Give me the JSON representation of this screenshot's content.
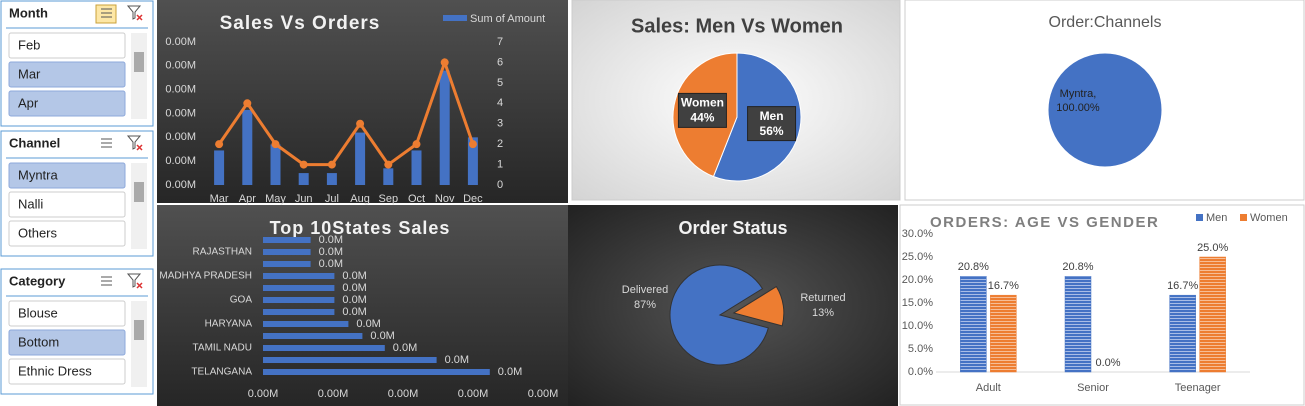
{
  "slicers": [
    {
      "title": "Month",
      "items": [
        {
          "label": "Feb",
          "selected": false
        },
        {
          "label": "Mar",
          "selected": true
        },
        {
          "label": "Apr",
          "selected": true
        }
      ]
    },
    {
      "title": "Channel",
      "items": [
        {
          "label": "Myntra",
          "selected": true
        },
        {
          "label": "Nalli",
          "selected": false
        },
        {
          "label": "Others",
          "selected": false
        }
      ]
    },
    {
      "title": "Category",
      "items": [
        {
          "label": "Blouse",
          "selected": false
        },
        {
          "label": "Bottom",
          "selected": true
        },
        {
          "label": "Ethnic Dress",
          "selected": false
        }
      ]
    }
  ],
  "chart_data": [
    {
      "type": "combo",
      "title": "Sales Vs Orders",
      "categories": [
        "Mar",
        "Apr",
        "May",
        "Jun",
        "Jul",
        "Aug",
        "Sep",
        "Oct",
        "Nov",
        "Dec"
      ],
      "series": [
        {
          "name": "Sum of Amount",
          "kind": "bar",
          "color": "#4472c4",
          "values": [
            0.00029,
            0.00063,
            0.00034,
            0.0001,
            0.0001,
            0.00044,
            0.00014,
            0.00029,
            0.00096,
            0.0004
          ]
        },
        {
          "kind": "line",
          "axis": "y2",
          "color": "#ed7d31",
          "values": [
            2,
            4,
            2,
            1,
            1,
            3,
            1,
            2,
            6,
            2
          ]
        }
      ],
      "ylim": [
        0,
        0.0012
      ],
      "yticks": [
        {
          "value": 0,
          "label": "0.00M"
        },
        {
          "value": 0.0002,
          "label": "0.00M"
        },
        {
          "value": 0.0004,
          "label": "0.00M"
        },
        {
          "value": 0.0006,
          "label": "0.00M"
        },
        {
          "value": 0.0008,
          "label": "0.00M"
        },
        {
          "value": 0.001,
          "label": "0.00M"
        },
        {
          "value": 0.0012,
          "label": "0.00M"
        }
      ],
      "y2lim": [
        0,
        7
      ],
      "y2ticks": [
        0,
        1,
        2,
        3,
        4,
        5,
        6,
        7
      ],
      "legend": "top-right"
    },
    {
      "type": "pie",
      "title": "Sales: Men Vs Women",
      "categories": [
        "Men",
        "Women"
      ],
      "values": [
        56,
        44
      ],
      "value_labels": [
        "56%",
        "44%"
      ],
      "colors": [
        "#4472c4",
        "#ed7d31"
      ],
      "start_angle": 0
    },
    {
      "type": "pie",
      "title": "Order:Channels",
      "categories": [
        "Myntra,"
      ],
      "values": [
        100
      ],
      "value_labels": [
        "100.00%"
      ],
      "colors": [
        "#4472c4"
      ],
      "start_angle": 0
    },
    {
      "type": "bar",
      "orientation": "horizontal",
      "title": "Top 10States Sales",
      "categories": [
        null,
        "RAJASTHAN",
        null,
        "MADHYA PRADESH",
        null,
        "GOA",
        null,
        "HARYANA",
        null,
        "TAMIL NADU",
        null,
        "TELANGANA"
      ],
      "values": [
        0.00034,
        0.00034,
        0.00034,
        0.00051,
        0.00051,
        0.00051,
        0.00051,
        0.00061,
        0.00071,
        0.00087,
        0.00124,
        0.00162
      ],
      "value_labels": [
        "0.0M",
        "0.0M",
        "0.0M",
        "0.0M",
        "0.0M",
        "0.0M",
        "0.0M",
        "0.0M",
        "0.0M",
        "0.0M",
        "0.0M",
        "0.0M"
      ],
      "color": "#4472c4",
      "xlim": [
        0,
        0.002
      ],
      "xticks": [
        {
          "value": 0,
          "label": "0.00M"
        },
        {
          "value": 0.0005,
          "label": "0.00M"
        },
        {
          "value": 0.001,
          "label": "0.00M"
        },
        {
          "value": 0.0015,
          "label": "0.00M"
        },
        {
          "value": 0.002,
          "label": "0.00M"
        }
      ]
    },
    {
      "type": "pie",
      "title": "Order Status",
      "categories": [
        "Delivered",
        "Returned"
      ],
      "values": [
        87,
        13
      ],
      "value_labels": [
        "87%",
        "13%"
      ],
      "colors": [
        "#4472c4",
        "#ed7d31"
      ],
      "start_angle": 105,
      "explode": [
        0,
        14
      ]
    },
    {
      "type": "bar",
      "orientation": "vertical",
      "title": "ORDERS: AGE VS GENDER",
      "categories": [
        "Adult",
        "Senior",
        "Teenager"
      ],
      "series": [
        {
          "name": "Men",
          "color": "#4472c4",
          "values": [
            20.8,
            20.8,
            16.7
          ],
          "value_labels": [
            "20.8%",
            "20.8%",
            "16.7%"
          ]
        },
        {
          "name": "Women",
          "color": "#ed7d31",
          "values": [
            16.7,
            0,
            25.0
          ],
          "value_labels": [
            "16.7%",
            "0.0%",
            "25.0%"
          ]
        }
      ],
      "ylim": [
        0,
        30
      ],
      "yticks": [
        {
          "value": 0,
          "label": "0.0%"
        },
        {
          "value": 5,
          "label": "5.0%"
        },
        {
          "value": 10,
          "label": "10.0%"
        },
        {
          "value": 15,
          "label": "15.0%"
        },
        {
          "value": 20,
          "label": "20.0%"
        },
        {
          "value": 25,
          "label": "25.0%"
        },
        {
          "value": 30,
          "label": "30.0%"
        }
      ],
      "legend": "top-right"
    }
  ]
}
